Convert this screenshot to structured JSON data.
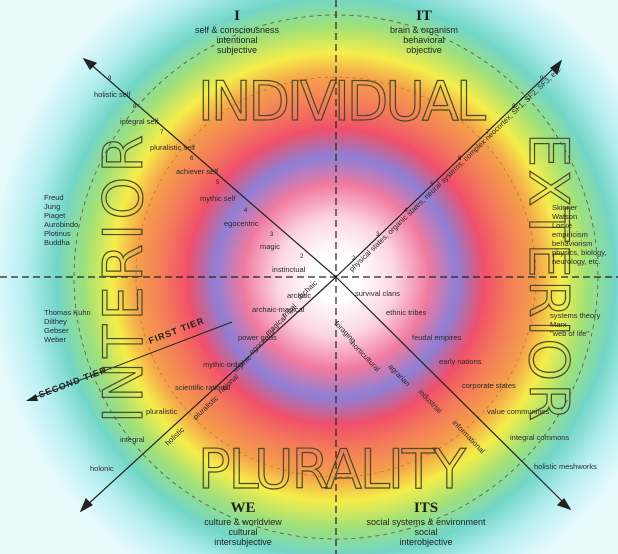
{
  "quadrants": {
    "ul": {
      "title": "I",
      "lines": [
        "self & consciousness",
        "intentional",
        "subjective"
      ]
    },
    "ur": {
      "title": "IT",
      "lines": [
        "brain & organism",
        "behavioral",
        "objective"
      ]
    },
    "ll": {
      "title": "WE",
      "lines": [
        "culture & worldview",
        "cultural",
        "intersubjective"
      ]
    },
    "lr": {
      "title": "ITS",
      "lines": [
        "social systems & environment",
        "social",
        "interobjective"
      ]
    }
  },
  "big_words": {
    "top": "INDIVIDUAL",
    "bottom": "PLURALITY",
    "left": "INTERIOR",
    "right": "EXTERIOR"
  },
  "upper_left_levels": [
    "holistic self",
    "integral self",
    "pluralistic self",
    "achiever self",
    "mythic self",
    "egocentric",
    "magic",
    "instinctual"
  ],
  "lower_left_levels": [
    "archaic",
    "archaic-magical",
    "power gods",
    "mythic order",
    "scientific rational",
    "pluralistic",
    "integral",
    "holonic"
  ],
  "lower_right_levels": [
    "survival clans",
    "ethnic tribes",
    "feudal empires",
    "early nations",
    "corporate states",
    "value communities",
    "integral commons",
    "holistic meshworks"
  ],
  "lower_left_diagonal": [
    "archaic",
    "tribal",
    "magical",
    "egocentric",
    "mythic",
    "rational",
    "pluralistic",
    "holistic"
  ],
  "lower_right_diagonal": [
    "foraging",
    "horticultural",
    "agrarian",
    "industrial",
    "informational"
  ],
  "upper_right_diagonal": "physical states, organic states, neural systems, complex neocortex, SF1, SF2, SF3, etc.",
  "left_names": [
    "Freud",
    "Jung",
    "Piaget",
    "Aurobindo",
    "Plotinus",
    "Buddha"
  ],
  "left_lower_names": [
    "Thomas Kuhn",
    "Dilthey",
    "Gebser",
    "Weber"
  ],
  "right_names": [
    "Skinner",
    "Watson",
    "Locke",
    "empiricism",
    "behaviorism",
    "physics, biology,",
    "neurology, etc."
  ],
  "right_lower_names": [
    "systems theory",
    "Marx",
    "\"web of life\""
  ],
  "tiers": {
    "first": "FIRST TIER",
    "second": "SECOND TIER"
  },
  "colors": {
    "center": "#ffffff",
    "pink": "#f07aa0",
    "purple": "#8e7fd6",
    "red": "#f0506a",
    "orange": "#f5a04a",
    "yellow": "#f5ee4a",
    "green": "#9fe07a",
    "teal": "#72d6c8",
    "cyan": "#b6eef2"
  }
}
